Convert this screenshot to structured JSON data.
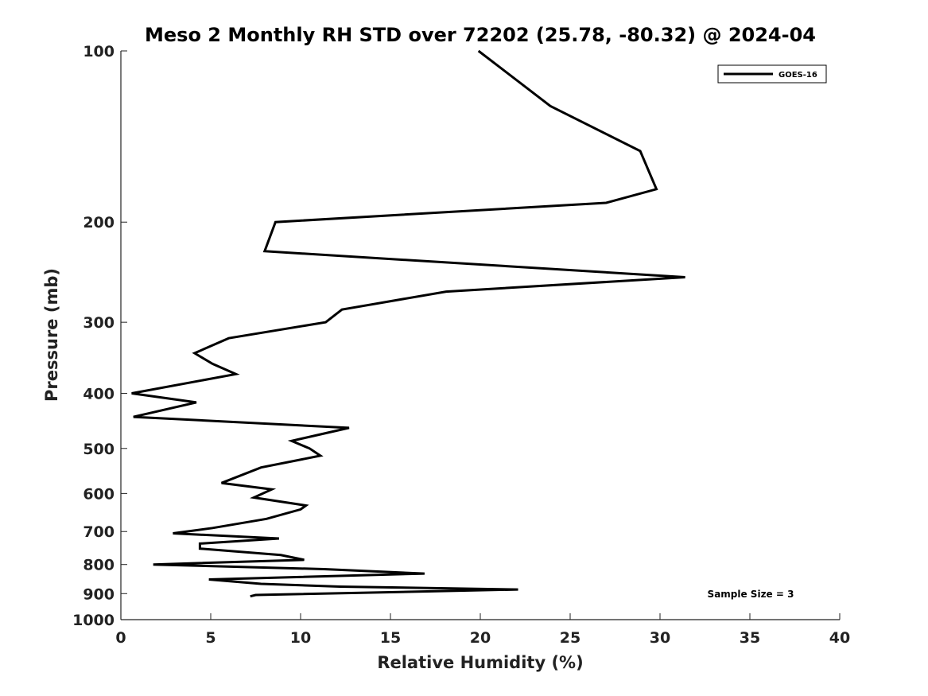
{
  "chart_data": {
    "type": "line",
    "title": "Meso 2 Monthly RH STD over 72202 (25.78, -80.32) @ 2024-04",
    "xlabel": "Relative Humidity (%)",
    "ylabel": "Pressure (mb)",
    "xlim": [
      0,
      40
    ],
    "ylim": [
      100,
      1000
    ],
    "y_scale": "log",
    "y_inverted": true,
    "xticks": [
      "0",
      "5",
      "10",
      "15",
      "20",
      "25",
      "30",
      "35",
      "40"
    ],
    "yticks": [
      "100",
      "200",
      "300",
      "400",
      "500",
      "600",
      "700",
      "800",
      "900",
      "1000"
    ],
    "grid": false,
    "legend": {
      "placement": "top-right",
      "entries": [
        "GOES-16"
      ]
    },
    "annotation": "Sample Size = 3",
    "series": [
      {
        "name": "GOES-16",
        "color": "#000000",
        "points": [
          [
            19.9,
            100
          ],
          [
            23.9,
            125
          ],
          [
            28.9,
            150
          ],
          [
            29.8,
            175
          ],
          [
            27.0,
            185
          ],
          [
            8.6,
            200
          ],
          [
            8.0,
            225
          ],
          [
            31.4,
            250
          ],
          [
            18.1,
            265
          ],
          [
            12.3,
            285
          ],
          [
            11.4,
            300
          ],
          [
            6.0,
            320
          ],
          [
            4.1,
            340
          ],
          [
            5.1,
            355
          ],
          [
            6.4,
            370
          ],
          [
            0.6,
            400
          ],
          [
            4.2,
            415
          ],
          [
            0.7,
            440
          ],
          [
            12.7,
            460
          ],
          [
            9.5,
            485
          ],
          [
            10.5,
            500
          ],
          [
            11.1,
            515
          ],
          [
            7.8,
            540
          ],
          [
            5.6,
            575
          ],
          [
            8.4,
            590
          ],
          [
            7.4,
            610
          ],
          [
            10.3,
            630
          ],
          [
            10.0,
            640
          ],
          [
            8.1,
            665
          ],
          [
            5.1,
            690
          ],
          [
            2.9,
            705
          ],
          [
            8.8,
            720
          ],
          [
            4.4,
            735
          ],
          [
            4.4,
            750
          ],
          [
            8.9,
            770
          ],
          [
            10.2,
            785
          ],
          [
            1.8,
            800
          ],
          [
            11.3,
            815
          ],
          [
            16.9,
            830
          ],
          [
            4.9,
            850
          ],
          [
            7.8,
            865
          ],
          [
            12.2,
            875
          ],
          [
            22.1,
            885
          ],
          [
            7.5,
            905
          ],
          [
            7.2,
            910
          ]
        ]
      }
    ]
  }
}
